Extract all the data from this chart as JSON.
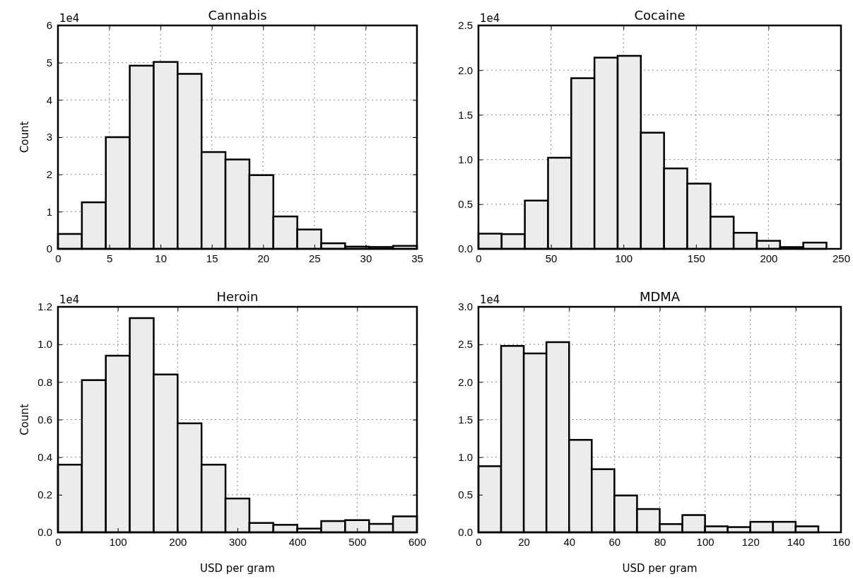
{
  "chart_data": [
    {
      "type": "histogram",
      "title": "Cannabis",
      "ylabel": "Count",
      "annotations": [
        "1e4"
      ],
      "bins": [
        0,
        2.333,
        4.667,
        7,
        9.333,
        11.667,
        14,
        16.333,
        18.667,
        21,
        23.333,
        25.667,
        28,
        30.333,
        32.667,
        35
      ],
      "values": [
        0.4,
        1.25,
        3.0,
        4.92,
        5.02,
        4.7,
        2.6,
        2.4,
        1.98,
        0.87,
        0.52,
        0.15,
        0.06,
        0.05,
        0.08
      ],
      "color": "#ececec",
      "xlim": [
        0,
        35
      ],
      "xticks": [
        0,
        5,
        10,
        15,
        20,
        25,
        30,
        35
      ],
      "ylim": [
        0,
        6
      ],
      "yticks": [
        0,
        1,
        2,
        3,
        4,
        5,
        6
      ],
      "grid": true
    },
    {
      "type": "histogram",
      "title": "Cocaine",
      "annotations": [
        "1e4"
      ],
      "bins": [
        0,
        16,
        32,
        48,
        64,
        80,
        96,
        112,
        128,
        144,
        160,
        176,
        192,
        208,
        224,
        240
      ],
      "values": [
        0.17,
        0.165,
        0.54,
        1.02,
        1.91,
        2.14,
        2.16,
        1.3,
        0.9,
        0.73,
        0.36,
        0.18,
        0.09,
        0.02,
        0.07
      ],
      "color": "#ececec",
      "xlim": [
        0,
        250
      ],
      "xticks": [
        0,
        50,
        100,
        150,
        200,
        250
      ],
      "ylim": [
        0,
        2.5
      ],
      "yticks": [
        {
          "value": 0,
          "label": "0.0"
        },
        {
          "value": 0.5,
          "label": "0.5"
        },
        {
          "value": 1,
          "label": "1.0"
        },
        {
          "value": 1.5,
          "label": "1.5"
        },
        {
          "value": 2,
          "label": "2.0"
        },
        {
          "value": 2.5,
          "label": "2.5"
        }
      ],
      "grid": true
    },
    {
      "type": "histogram",
      "title": "Heroin",
      "xlabel": "USD per gram",
      "ylabel": "Count",
      "annotations": [
        "1e4"
      ],
      "bins": [
        0,
        40,
        80,
        120,
        160,
        200,
        240,
        280,
        320,
        360,
        400,
        440,
        480,
        520,
        560,
        600
      ],
      "values": [
        0.36,
        0.81,
        0.94,
        1.14,
        0.84,
        0.58,
        0.36,
        0.18,
        0.05,
        0.04,
        0.02,
        0.06,
        0.065,
        0.045,
        0.085
      ],
      "color": "#ececec",
      "xlim": [
        0,
        600
      ],
      "xticks": [
        0,
        100,
        200,
        300,
        400,
        500,
        600
      ],
      "ylim": [
        0,
        1.2
      ],
      "yticks": [
        {
          "value": 0,
          "label": "0.0"
        },
        {
          "value": 0.2,
          "label": "0.2"
        },
        {
          "value": 0.4,
          "label": "0.4"
        },
        {
          "value": 0.6,
          "label": "0.6"
        },
        {
          "value": 0.8,
          "label": "0.8"
        },
        {
          "value": 1,
          "label": "1.0"
        },
        {
          "value": 1.2,
          "label": "1.2"
        }
      ],
      "grid": true
    },
    {
      "type": "histogram",
      "title": "MDMA",
      "xlabel": "USD per gram",
      "annotations": [
        "1e4"
      ],
      "bins": [
        0,
        10,
        20,
        30,
        40,
        50,
        60,
        70,
        80,
        90,
        100,
        110,
        120,
        130,
        140,
        150,
        160
      ],
      "values": [
        0.88,
        2.48,
        2.38,
        2.53,
        1.23,
        0.84,
        0.49,
        0.31,
        0.11,
        0.23,
        0.08,
        0.07,
        0.14,
        0.14,
        0.08,
        0
      ],
      "color": "#ececec",
      "xlim": [
        0,
        160
      ],
      "xticks": [
        0,
        20,
        40,
        60,
        80,
        100,
        120,
        140,
        160
      ],
      "ylim": [
        0,
        3
      ],
      "yticks": [
        {
          "value": 0,
          "label": "0.0"
        },
        {
          "value": 0.5,
          "label": "0.5"
        },
        {
          "value": 1,
          "label": "1.0"
        },
        {
          "value": 1.5,
          "label": "1.5"
        },
        {
          "value": 2,
          "label": "2.0"
        },
        {
          "value": 2.5,
          "label": "2.5"
        },
        {
          "value": 3,
          "label": "3.0"
        }
      ],
      "grid": true
    }
  ]
}
